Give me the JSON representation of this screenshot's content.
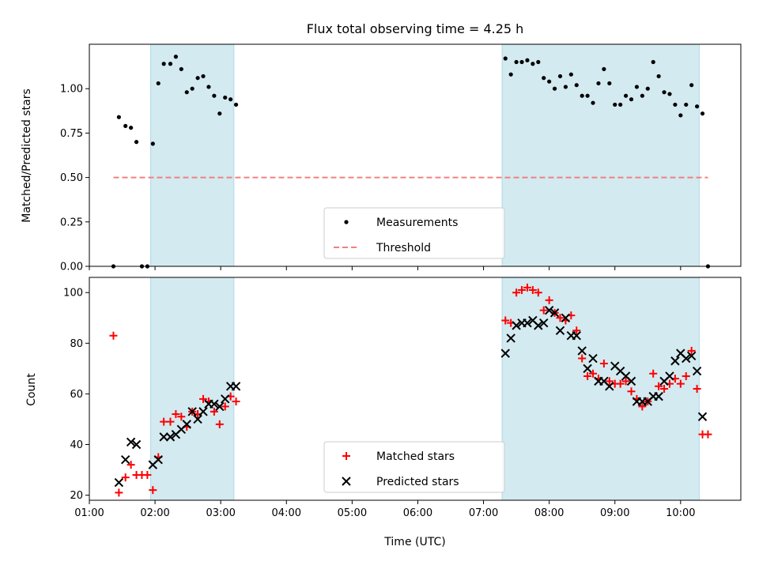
{
  "chart_data": [
    {
      "type": "scatter",
      "title": "Flux total observing time = 4.25 h",
      "xlabel": "",
      "ylabel": "Matched/Predicted stars",
      "xlim": [
        "01:00",
        "10:55"
      ],
      "ylim": [
        0,
        1.25
      ],
      "yticks": [
        "0.00",
        "0.25",
        "0.50",
        "0.75",
        "1.00"
      ],
      "ytick_values": [
        0,
        0.25,
        0.5,
        0.75,
        1.0
      ],
      "shaded_intervals": [
        [
          "01:56",
          "03:12"
        ],
        [
          "07:17",
          "10:17"
        ]
      ],
      "shade_color": "#d3eaf0",
      "legend_position": "lower-center",
      "series": [
        {
          "name": "Measurements",
          "marker": "dot",
          "color": "#000000",
          "points": [
            [
              "01:22",
              0.0
            ],
            [
              "01:27",
              0.84
            ],
            [
              "01:33",
              0.79
            ],
            [
              "01:38",
              0.78
            ],
            [
              "01:43",
              0.7
            ],
            [
              "01:48",
              0.0
            ],
            [
              "01:53",
              0.0
            ],
            [
              "01:58",
              0.69
            ],
            [
              "02:03",
              1.03
            ],
            [
              "02:08",
              1.14
            ],
            [
              "02:14",
              1.14
            ],
            [
              "02:19",
              1.18
            ],
            [
              "02:24",
              1.11
            ],
            [
              "02:29",
              0.98
            ],
            [
              "02:34",
              1.0
            ],
            [
              "02:39",
              1.06
            ],
            [
              "02:44",
              1.07
            ],
            [
              "02:49",
              1.01
            ],
            [
              "02:54",
              0.96
            ],
            [
              "02:59",
              0.86
            ],
            [
              "03:04",
              0.95
            ],
            [
              "03:09",
              0.94
            ],
            [
              "03:14",
              0.91
            ],
            [
              "07:20",
              1.17
            ],
            [
              "07:25",
              1.08
            ],
            [
              "07:30",
              1.15
            ],
            [
              "07:35",
              1.15
            ],
            [
              "07:40",
              1.16
            ],
            [
              "07:45",
              1.14
            ],
            [
              "07:50",
              1.15
            ],
            [
              "07:55",
              1.06
            ],
            [
              "08:00",
              1.04
            ],
            [
              "08:05",
              1.0
            ],
            [
              "08:10",
              1.07
            ],
            [
              "08:15",
              1.01
            ],
            [
              "08:20",
              1.08
            ],
            [
              "08:25",
              1.02
            ],
            [
              "08:30",
              0.96
            ],
            [
              "08:35",
              0.96
            ],
            [
              "08:40",
              0.92
            ],
            [
              "08:45",
              1.03
            ],
            [
              "08:50",
              1.11
            ],
            [
              "08:55",
              1.03
            ],
            [
              "09:00",
              0.91
            ],
            [
              "09:05",
              0.91
            ],
            [
              "09:10",
              0.96
            ],
            [
              "09:15",
              0.94
            ],
            [
              "09:20",
              1.01
            ],
            [
              "09:25",
              0.96
            ],
            [
              "09:30",
              1.0
            ],
            [
              "09:35",
              1.15
            ],
            [
              "09:40",
              1.07
            ],
            [
              "09:45",
              0.98
            ],
            [
              "09:50",
              0.97
            ],
            [
              "09:55",
              0.91
            ],
            [
              "10:00",
              0.85
            ],
            [
              "10:05",
              0.91
            ],
            [
              "10:10",
              1.02
            ],
            [
              "10:15",
              0.9
            ],
            [
              "10:20",
              0.86
            ],
            [
              "10:25",
              0.0
            ]
          ]
        },
        {
          "name": "Threshold",
          "marker": "dashed-line",
          "color": "#f08080",
          "points": [
            [
              "01:22",
              0.5
            ],
            [
              "10:25",
              0.5
            ]
          ]
        }
      ]
    },
    {
      "type": "scatter",
      "title": "",
      "xlabel": "Time (UTC)",
      "ylabel": "Count",
      "xlim": [
        "01:00",
        "10:55"
      ],
      "ylim": [
        18,
        106
      ],
      "yticks": [
        "20",
        "40",
        "60",
        "80",
        "100"
      ],
      "ytick_values": [
        20,
        40,
        60,
        80,
        100
      ],
      "xticks": [
        "01:00",
        "02:00",
        "03:00",
        "04:00",
        "05:00",
        "06:00",
        "07:00",
        "08:00",
        "09:00",
        "10:00"
      ],
      "shaded_intervals": [
        [
          "01:56",
          "03:12"
        ],
        [
          "07:17",
          "10:17"
        ]
      ],
      "shade_color": "#d3eaf0",
      "legend_position": "lower-center",
      "series": [
        {
          "name": "Matched stars",
          "marker": "plus",
          "color": "#ff0000",
          "points": [
            [
              "01:22",
              83
            ],
            [
              "01:27",
              21
            ],
            [
              "01:33",
              27
            ],
            [
              "01:38",
              32
            ],
            [
              "01:43",
              28
            ],
            [
              "01:48",
              28
            ],
            [
              "01:53",
              28
            ],
            [
              "01:58",
              22
            ],
            [
              "02:03",
              35
            ],
            [
              "02:08",
              49
            ],
            [
              "02:14",
              49
            ],
            [
              "02:19",
              52
            ],
            [
              "02:24",
              51
            ],
            [
              "02:29",
              47
            ],
            [
              "02:34",
              53
            ],
            [
              "02:39",
              52
            ],
            [
              "02:44",
              58
            ],
            [
              "02:49",
              57
            ],
            [
              "02:54",
              53
            ],
            [
              "02:59",
              48
            ],
            [
              "03:04",
              55
            ],
            [
              "03:09",
              59
            ],
            [
              "03:14",
              57
            ],
            [
              "07:20",
              89
            ],
            [
              "07:25",
              88
            ],
            [
              "07:30",
              100
            ],
            [
              "07:35",
              101
            ],
            [
              "07:40",
              102
            ],
            [
              "07:45",
              101
            ],
            [
              "07:50",
              100
            ],
            [
              "07:55",
              93
            ],
            [
              "08:00",
              97
            ],
            [
              "08:05",
              92
            ],
            [
              "08:10",
              90
            ],
            [
              "08:15",
              89
            ],
            [
              "08:20",
              91
            ],
            [
              "08:25",
              85
            ],
            [
              "08:30",
              74
            ],
            [
              "08:35",
              67
            ],
            [
              "08:40",
              68
            ],
            [
              "08:45",
              66
            ],
            [
              "08:50",
              72
            ],
            [
              "08:55",
              65
            ],
            [
              "09:00",
              64
            ],
            [
              "09:05",
              64
            ],
            [
              "09:10",
              65
            ],
            [
              "09:15",
              61
            ],
            [
              "09:20",
              58
            ],
            [
              "09:25",
              55
            ],
            [
              "09:30",
              57
            ],
            [
              "09:35",
              68
            ],
            [
              "09:40",
              63
            ],
            [
              "09:45",
              62
            ],
            [
              "09:50",
              64
            ],
            [
              "09:55",
              66
            ],
            [
              "10:00",
              64
            ],
            [
              "10:05",
              67
            ],
            [
              "10:10",
              77
            ],
            [
              "10:15",
              62
            ],
            [
              "10:20",
              44
            ],
            [
              "10:25",
              44
            ]
          ]
        },
        {
          "name": "Predicted stars",
          "marker": "x",
          "color": "#000000",
          "points": [
            [
              "01:27",
              25
            ],
            [
              "01:33",
              34
            ],
            [
              "01:38",
              41
            ],
            [
              "01:43",
              40
            ],
            [
              "01:58",
              32
            ],
            [
              "02:03",
              34
            ],
            [
              "02:08",
              43
            ],
            [
              "02:14",
              43
            ],
            [
              "02:19",
              44
            ],
            [
              "02:24",
              46
            ],
            [
              "02:29",
              48
            ],
            [
              "02:34",
              53
            ],
            [
              "02:39",
              50
            ],
            [
              "02:44",
              53
            ],
            [
              "02:49",
              56
            ],
            [
              "02:54",
              56
            ],
            [
              "02:59",
              55
            ],
            [
              "03:04",
              58
            ],
            [
              "03:09",
              63
            ],
            [
              "03:14",
              63
            ],
            [
              "07:20",
              76
            ],
            [
              "07:25",
              82
            ],
            [
              "07:30",
              87
            ],
            [
              "07:35",
              88
            ],
            [
              "07:40",
              88
            ],
            [
              "07:45",
              89
            ],
            [
              "07:50",
              87
            ],
            [
              "07:55",
              88
            ],
            [
              "08:00",
              93
            ],
            [
              "08:05",
              92
            ],
            [
              "08:10",
              85
            ],
            [
              "08:15",
              90
            ],
            [
              "08:20",
              83
            ],
            [
              "08:25",
              83
            ],
            [
              "08:30",
              77
            ],
            [
              "08:35",
              70
            ],
            [
              "08:40",
              74
            ],
            [
              "08:45",
              65
            ],
            [
              "08:50",
              65
            ],
            [
              "08:55",
              63
            ],
            [
              "09:00",
              71
            ],
            [
              "09:05",
              69
            ],
            [
              "09:10",
              67
            ],
            [
              "09:15",
              65
            ],
            [
              "09:20",
              57
            ],
            [
              "09:25",
              57
            ],
            [
              "09:30",
              57
            ],
            [
              "09:35",
              59
            ],
            [
              "09:40",
              59
            ],
            [
              "09:45",
              65
            ],
            [
              "09:50",
              67
            ],
            [
              "09:55",
              73
            ],
            [
              "10:00",
              76
            ],
            [
              "10:05",
              74
            ],
            [
              "10:10",
              75
            ],
            [
              "10:15",
              69
            ],
            [
              "10:20",
              51
            ]
          ]
        }
      ]
    }
  ]
}
